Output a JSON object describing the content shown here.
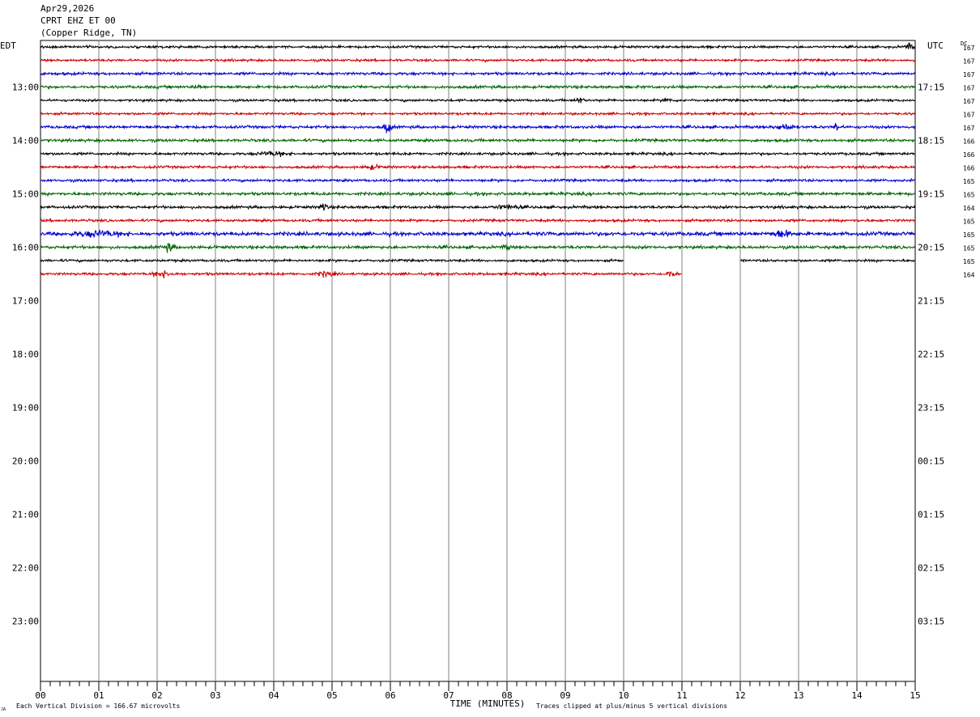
{
  "header": {
    "date": "Apr29,2026",
    "station": "CPRT EHZ ET 00",
    "location": "(Copper Ridge, TN)"
  },
  "chart_data": {
    "type": "line",
    "title": "",
    "left_timezone": "EDT",
    "right_timezone": "UTC",
    "dc_label": "DC",
    "xlabel": "TIME (MINUTES)",
    "x_ticks": [
      "00",
      "01",
      "02",
      "03",
      "04",
      "05",
      "06",
      "07",
      "08",
      "09",
      "10",
      "11",
      "12",
      "13",
      "14",
      "15"
    ],
    "xlim": [
      0,
      15
    ],
    "left_hour_labels": [
      "13:00",
      "14:00",
      "15:00",
      "16:00",
      "17:00",
      "18:00",
      "19:00",
      "20:00",
      "21:00",
      "22:00",
      "23:00"
    ],
    "right_hour_labels": [
      "17:15",
      "18:15",
      "19:15",
      "20:15",
      "21:15",
      "22:15",
      "23:15",
      "00:15",
      "01:15",
      "02:15",
      "03:15"
    ],
    "trace_colors": [
      "#000000",
      "#cc0000",
      "#0000cc",
      "#006600"
    ],
    "dc_offsets": [
      167,
      167,
      167,
      167,
      167,
      167,
      167,
      166,
      166,
      166,
      165,
      165,
      164,
      165,
      165,
      165,
      165,
      164
    ],
    "traces_per_hour": 4,
    "first_trace_hour_offset": -0.75,
    "trace_count": 18,
    "trace_18_end_minute": 11.0,
    "trace_17_gap_minutes": [
      10.0,
      12.0
    ],
    "footer_left": "Each Vertical Division =  166.67 microvolts",
    "footer_right": "Traces clipped at plus/minus 5 vertical divisions",
    "corner_mark": "JA"
  }
}
